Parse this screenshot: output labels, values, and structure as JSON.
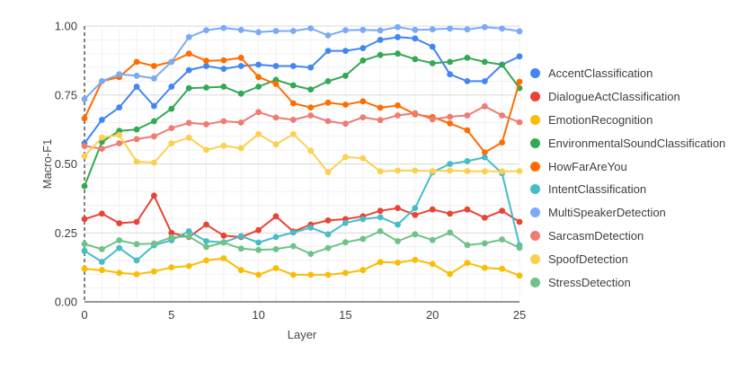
{
  "chart_data": {
    "type": "line",
    "title": "",
    "xlabel": "Layer",
    "ylabel": "Macro-F1",
    "xlim": [
      0,
      25
    ],
    "ylim": [
      0,
      1
    ],
    "xticks": [
      0,
      5,
      10,
      15,
      20,
      25
    ],
    "yticks": [
      0,
      0.25,
      0.5,
      0.75,
      1
    ],
    "ytick_labels": [
      "0.00",
      "0.25",
      "0.50",
      "0.75",
      "1.00"
    ],
    "grid": true,
    "legend_position": "right",
    "x": [
      0,
      1,
      2,
      3,
      4,
      5,
      6,
      7,
      8,
      9,
      10,
      11,
      12,
      13,
      14,
      15,
      16,
      17,
      18,
      19,
      20,
      21,
      22,
      23,
      24,
      25
    ],
    "series": [
      {
        "name": "AccentClassification",
        "color": "#4285F4",
        "values": [
          0.575,
          0.66,
          0.705,
          0.78,
          0.71,
          0.78,
          0.84,
          0.855,
          0.845,
          0.855,
          0.86,
          0.855,
          0.855,
          0.85,
          0.91,
          0.91,
          0.92,
          0.95,
          0.96,
          0.955,
          0.925,
          0.825,
          0.8,
          0.8,
          0.86,
          0.89
        ]
      },
      {
        "name": "DialogueActClassification",
        "color": "#EA4335",
        "values": [
          0.3,
          0.32,
          0.285,
          0.29,
          0.385,
          0.25,
          0.235,
          0.28,
          0.24,
          0.235,
          0.26,
          0.31,
          0.255,
          0.28,
          0.295,
          0.3,
          0.31,
          0.33,
          0.34,
          0.315,
          0.335,
          0.32,
          0.335,
          0.305,
          0.33,
          0.29
        ]
      },
      {
        "name": "EmotionRecognition",
        "color": "#FBBC04",
        "values": [
          0.12,
          0.115,
          0.105,
          0.1,
          0.11,
          0.125,
          0.13,
          0.15,
          0.158,
          0.115,
          0.098,
          0.122,
          0.098,
          0.098,
          0.098,
          0.105,
          0.115,
          0.144,
          0.142,
          0.152,
          0.137,
          0.101,
          0.141,
          0.123,
          0.12,
          0.095
        ]
      },
      {
        "name": "EnvironmentalSoundClassification",
        "color": "#34A853",
        "values": [
          0.42,
          0.58,
          0.62,
          0.625,
          0.655,
          0.7,
          0.775,
          0.777,
          0.78,
          0.755,
          0.78,
          0.805,
          0.785,
          0.77,
          0.8,
          0.82,
          0.875,
          0.895,
          0.9,
          0.88,
          0.865,
          0.87,
          0.885,
          0.87,
          0.86,
          0.775
        ]
      },
      {
        "name": "HowFarAreYou",
        "color": "#FF6D01",
        "values": [
          0.665,
          0.8,
          0.815,
          0.87,
          0.855,
          0.87,
          0.9,
          0.874,
          0.876,
          0.885,
          0.815,
          0.79,
          0.72,
          0.705,
          0.722,
          0.715,
          0.727,
          0.704,
          0.712,
          0.68,
          0.67,
          0.647,
          0.622,
          0.542,
          0.578,
          0.798
        ]
      },
      {
        "name": "IntentClassification",
        "color": "#46BDC6",
        "values": [
          0.185,
          0.145,
          0.195,
          0.15,
          0.205,
          0.223,
          0.256,
          0.22,
          0.216,
          0.238,
          0.215,
          0.235,
          0.251,
          0.269,
          0.245,
          0.286,
          0.3,
          0.307,
          0.28,
          0.34,
          0.47,
          0.5,
          0.51,
          0.524,
          0.466,
          0.205
        ]
      },
      {
        "name": "MultiSpeakerDetection",
        "color": "#7BAAF7",
        "values": [
          0.735,
          0.8,
          0.825,
          0.82,
          0.81,
          0.87,
          0.96,
          0.985,
          0.993,
          0.986,
          0.978,
          0.982,
          0.982,
          0.992,
          0.966,
          0.985,
          0.986,
          0.984,
          0.996,
          0.986,
          0.988,
          0.991,
          0.988,
          0.996,
          0.991,
          0.981
        ]
      },
      {
        "name": "SarcasmDetection",
        "color": "#F07B72",
        "values": [
          0.565,
          0.555,
          0.575,
          0.59,
          0.6,
          0.63,
          0.649,
          0.644,
          0.655,
          0.65,
          0.688,
          0.668,
          0.66,
          0.676,
          0.655,
          0.646,
          0.669,
          0.659,
          0.676,
          0.684,
          0.662,
          0.671,
          0.676,
          0.709,
          0.676,
          0.651
        ]
      },
      {
        "name": "SpoofDetection",
        "color": "#FCD04F",
        "values": [
          0.528,
          0.596,
          0.605,
          0.508,
          0.505,
          0.575,
          0.595,
          0.551,
          0.566,
          0.557,
          0.608,
          0.571,
          0.608,
          0.548,
          0.47,
          0.525,
          0.521,
          0.473,
          0.476,
          0.476,
          0.474,
          0.476,
          0.474,
          0.473,
          0.473,
          0.474
        ]
      },
      {
        "name": "StressDetection",
        "color": "#71C287",
        "values": [
          0.21,
          0.191,
          0.223,
          0.209,
          0.211,
          0.234,
          0.237,
          0.199,
          0.215,
          0.193,
          0.188,
          0.191,
          0.202,
          0.174,
          0.195,
          0.216,
          0.228,
          0.256,
          0.22,
          0.245,
          0.224,
          0.251,
          0.206,
          0.212,
          0.226,
          0.196
        ]
      }
    ]
  }
}
